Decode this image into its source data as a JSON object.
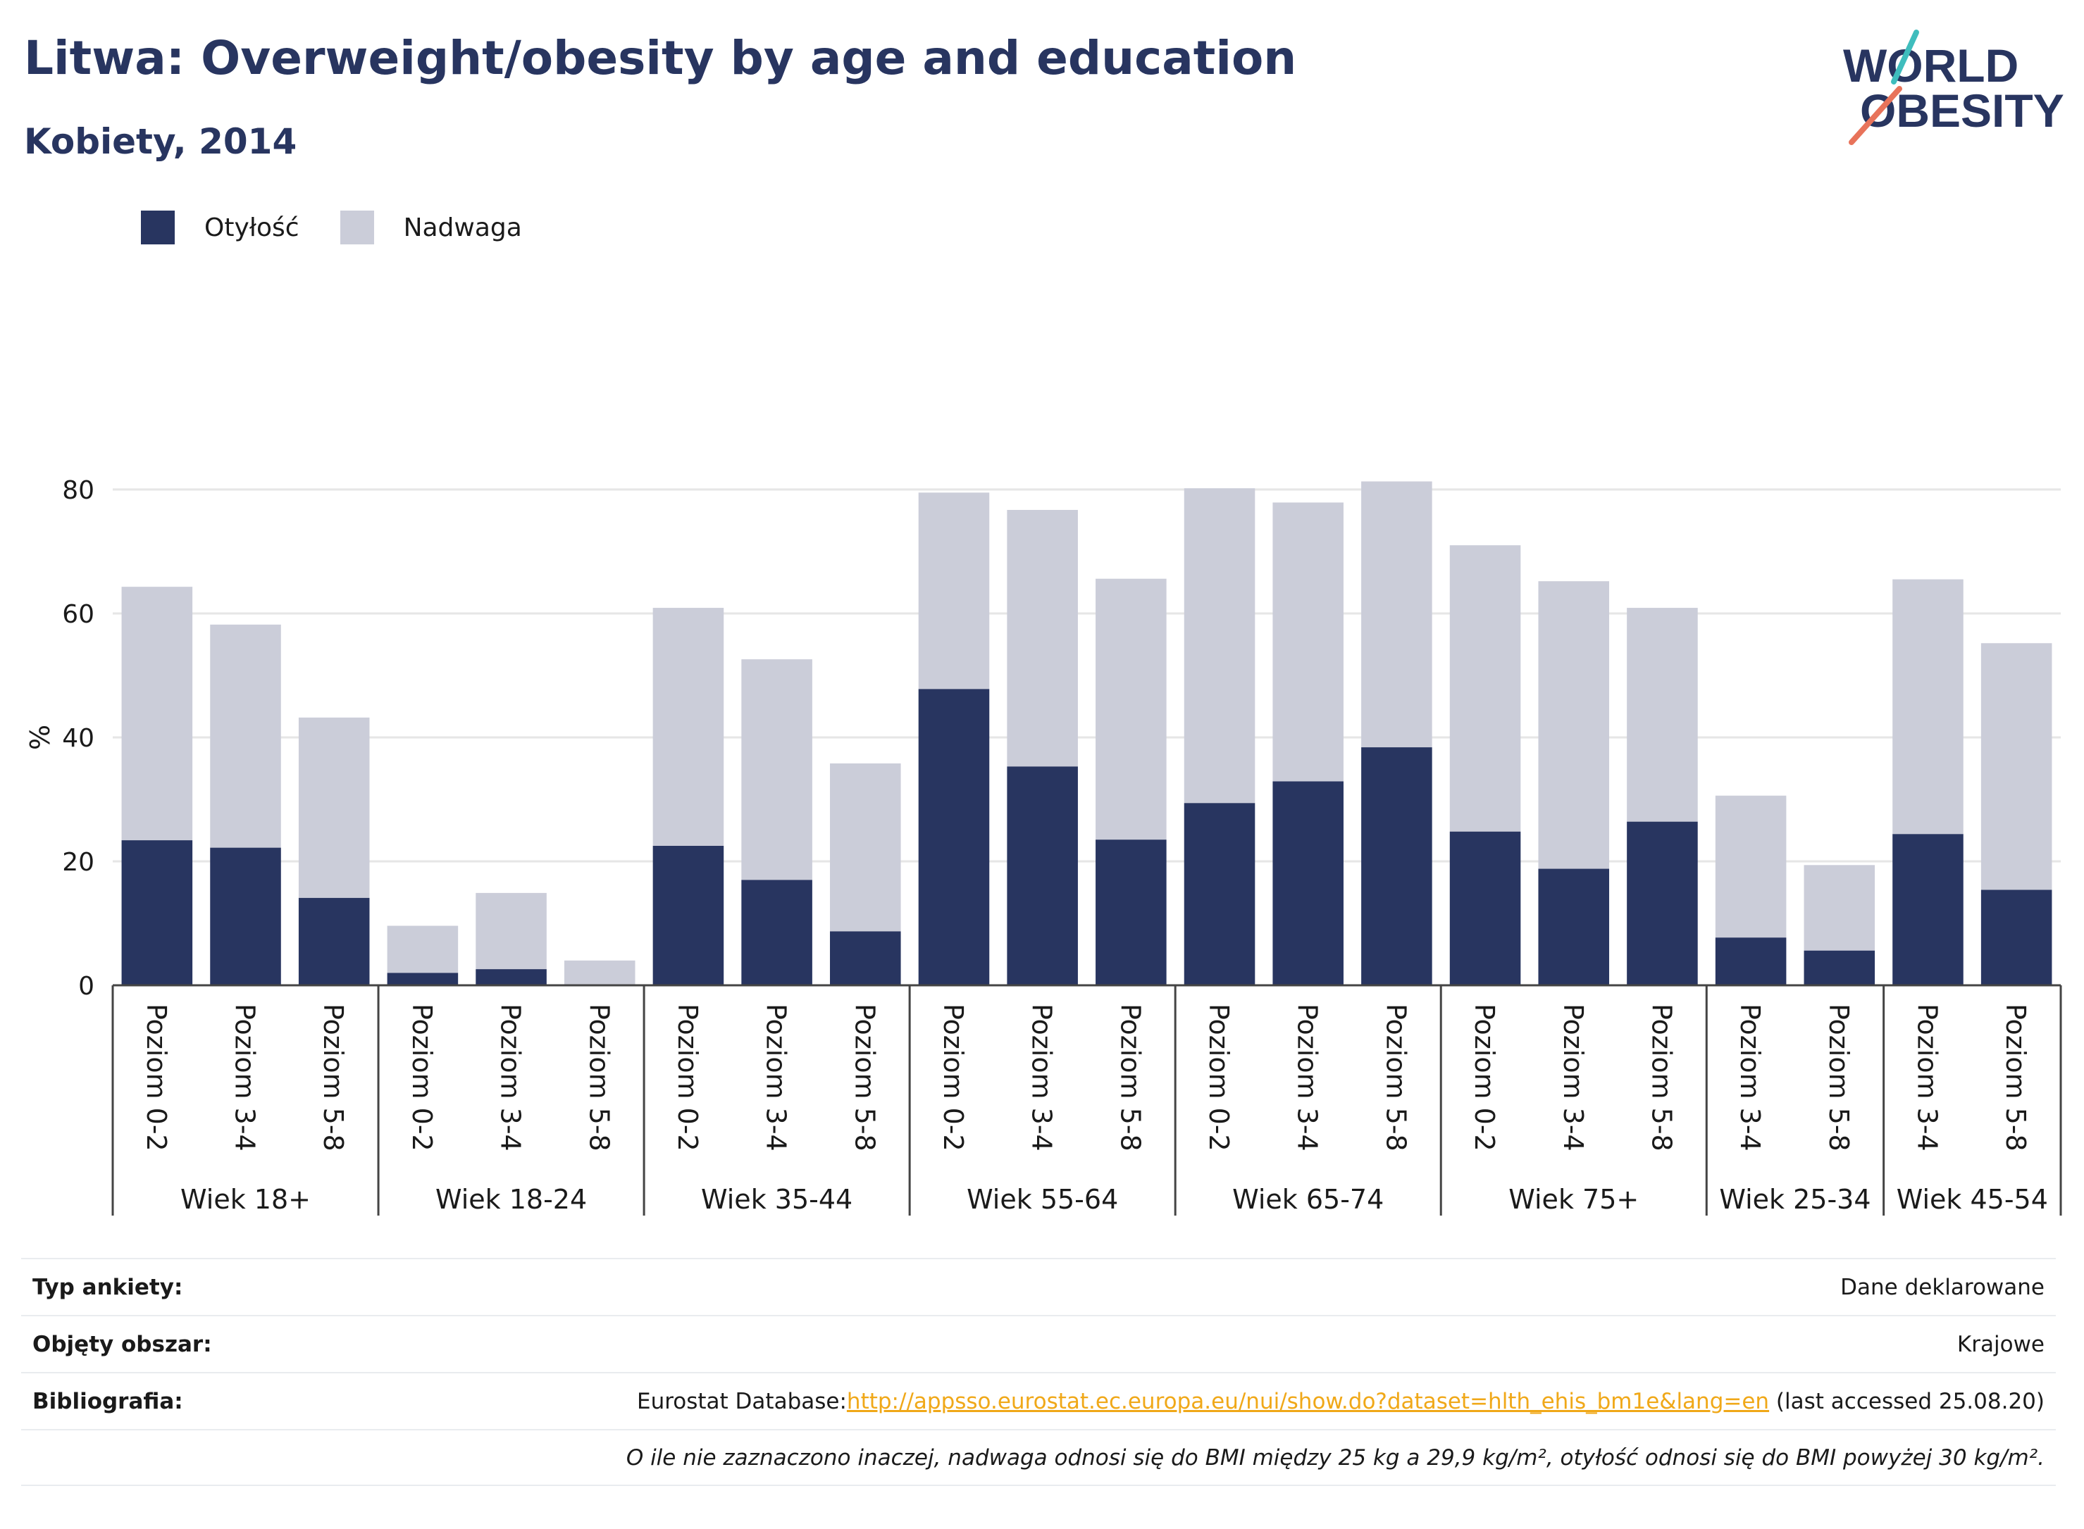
{
  "header": {
    "title": "Litwa: Overweight/obesity by age and education",
    "subtitle": "Kobiety, 2014"
  },
  "logo": {
    "line1": "WORLD",
    "line2": "OBESITY"
  },
  "colors": {
    "obesity": "#283560",
    "overweight": "#cbcdd9",
    "accent": "#f0a818"
  },
  "chart_data": {
    "type": "bar",
    "stacked": true,
    "ylabel": "%",
    "ylim": [
      0,
      88
    ],
    "yticks": [
      0,
      20,
      40,
      60,
      80
    ],
    "grid": true,
    "legend_position": "top-left",
    "groups": [
      {
        "label": "Wiek 18+",
        "categories": [
          "Poziom 0-2",
          "Poziom 3-4",
          "Poziom 5-8"
        ]
      },
      {
        "label": "Wiek 18-24",
        "categories": [
          "Poziom 0-2",
          "Poziom 3-4",
          "Poziom 5-8"
        ]
      },
      {
        "label": "Wiek 35-44",
        "categories": [
          "Poziom 0-2",
          "Poziom 3-4",
          "Poziom 5-8"
        ]
      },
      {
        "label": "Wiek 55-64",
        "categories": [
          "Poziom 0-2",
          "Poziom 3-4",
          "Poziom 5-8"
        ]
      },
      {
        "label": "Wiek 65-74",
        "categories": [
          "Poziom 0-2",
          "Poziom 3-4",
          "Poziom 5-8"
        ]
      },
      {
        "label": "Wiek 75+",
        "categories": [
          "Poziom 0-2",
          "Poziom 3-4",
          "Poziom 5-8"
        ]
      },
      {
        "label": "Wiek 25-34",
        "categories": [
          "Poziom 3-4",
          "Poziom 5-8"
        ]
      },
      {
        "label": "Wiek 45-54",
        "categories": [
          "Poziom 3-4",
          "Poziom 5-8"
        ]
      }
    ],
    "series": [
      {
        "name": "Otyłość",
        "values": [
          23.4,
          22.2,
          14.1,
          2.0,
          2.6,
          0,
          22.5,
          17.0,
          8.7,
          47.8,
          35.3,
          23.5,
          29.4,
          32.9,
          38.4,
          24.8,
          18.8,
          26.4,
          7.7,
          5.6,
          24.4,
          15.4
        ]
      },
      {
        "name": "Nadwaga",
        "values": [
          40.9,
          36.0,
          29.1,
          7.6,
          12.3,
          4.0,
          38.4,
          35.6,
          27.1,
          31.7,
          41.4,
          42.1,
          50.8,
          45.0,
          42.9,
          46.2,
          46.4,
          34.5,
          22.9,
          13.8,
          41.1,
          39.8
        ]
      }
    ]
  },
  "info": {
    "rows": [
      {
        "label": "Typ ankiety:",
        "value": "Dane deklarowane"
      },
      {
        "label": "Objęty obszar:",
        "value": "Krajowe"
      }
    ],
    "bibliography": {
      "label": "Bibliografia:",
      "prefix": "Eurostat Database:",
      "link": "http://appsso.eurostat.ec.europa.eu/nui/show.do?dataset=hlth_ehis_bm1e&lang=en",
      "suffix": " (last accessed 25.08.20)"
    },
    "note": "O ile nie zaznaczono inaczej, nadwaga odnosi się do BMI między 25 kg a 29,9 kg/m², otyłość odnosi się do BMI powyżej 30 kg/m²."
  }
}
